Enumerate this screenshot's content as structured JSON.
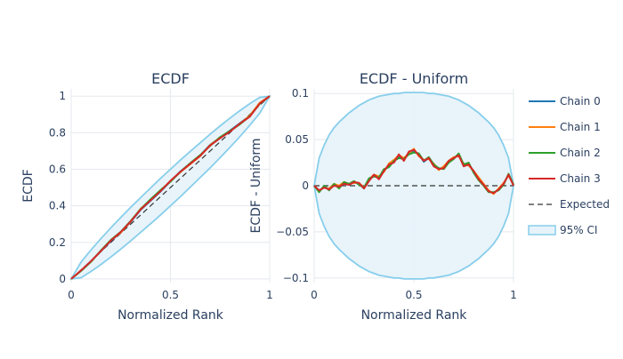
{
  "chart_data": [
    {
      "type": "line",
      "title": "ECDF",
      "xlabel": "Normalized Rank",
      "ylabel": "ECDF",
      "xlim": [
        0,
        1
      ],
      "ylim": [
        -0.02,
        1.04
      ],
      "x_ticks": [
        0,
        0.5,
        1
      ],
      "x_tick_labels": [
        "0",
        "0.5",
        "1"
      ],
      "y_ticks": [
        0,
        0.2,
        0.4,
        0.6,
        0.8,
        1
      ],
      "y_tick_labels": [
        "0",
        "0.2",
        "0.4",
        "0.6",
        "0.8",
        "1"
      ],
      "grid": true,
      "x": [
        0,
        0.05,
        0.1,
        0.15,
        0.2,
        0.25,
        0.3,
        0.35,
        0.4,
        0.45,
        0.5,
        0.55,
        0.6,
        0.65,
        0.7,
        0.75,
        0.8,
        0.85,
        0.9,
        0.95,
        1
      ],
      "series": [
        {
          "name": "Chain 0",
          "color": "#1f77b4",
          "values": [
            0,
            0.045,
            0.098,
            0.152,
            0.208,
            0.256,
            0.312,
            0.378,
            0.428,
            0.478,
            0.534,
            0.588,
            0.632,
            0.676,
            0.734,
            0.772,
            0.812,
            0.852,
            0.892,
            0.962,
            1
          ]
        },
        {
          "name": "Chain 1",
          "color": "#ff7f0e",
          "values": [
            0,
            0.046,
            0.096,
            0.154,
            0.212,
            0.254,
            0.314,
            0.384,
            0.432,
            0.482,
            0.536,
            0.584,
            0.628,
            0.672,
            0.732,
            0.774,
            0.808,
            0.848,
            0.894,
            0.964,
            1
          ]
        },
        {
          "name": "Chain 2",
          "color": "#2ca02c",
          "values": [
            0,
            0.044,
            0.094,
            0.156,
            0.214,
            0.258,
            0.318,
            0.382,
            0.436,
            0.486,
            0.532,
            0.586,
            0.634,
            0.678,
            0.728,
            0.776,
            0.81,
            0.846,
            0.89,
            0.958,
            1
          ]
        },
        {
          "name": "Chain 3",
          "color": "#d62728",
          "values": [
            0,
            0.047,
            0.097,
            0.153,
            0.21,
            0.257,
            0.315,
            0.38,
            0.43,
            0.48,
            0.537,
            0.586,
            0.63,
            0.674,
            0.73,
            0.77,
            0.806,
            0.85,
            0.888,
            0.96,
            1
          ]
        },
        {
          "name": "Expected",
          "color": "#333333",
          "dash": true,
          "values": [
            0,
            0.05,
            0.1,
            0.15,
            0.2,
            0.25,
            0.3,
            0.35,
            0.4,
            0.45,
            0.5,
            0.55,
            0.6,
            0.65,
            0.7,
            0.75,
            0.8,
            0.85,
            0.9,
            0.95,
            1
          ]
        }
      ],
      "ci": {
        "name": "95% CI",
        "color": "#87ceeb",
        "fill": "#e6f3fa",
        "halfwidth": [
          0,
          0.043,
          0.059,
          0.071,
          0.08,
          0.087,
          0.092,
          0.095,
          0.098,
          0.1,
          0.1,
          0.1,
          0.098,
          0.095,
          0.092,
          0.087,
          0.08,
          0.071,
          0.059,
          0.043,
          0
        ]
      }
    },
    {
      "type": "line",
      "title": "ECDF - Uniform",
      "xlabel": "Normalized Rank",
      "ylabel": "ECDF - Uniform",
      "xlim": [
        0,
        1
      ],
      "ylim": [
        -0.105,
        0.105
      ],
      "x_ticks": [
        0,
        0.5,
        1
      ],
      "x_tick_labels": [
        "0",
        "0.5",
        "1"
      ],
      "y_ticks": [
        -0.1,
        -0.05,
        0,
        0.05,
        0.1
      ],
      "y_tick_labels": [
        "−0.1",
        "−0.05",
        "0",
        "0.05",
        "0.1"
      ],
      "grid": true,
      "x": [
        0,
        0.025,
        0.05,
        0.075,
        0.1,
        0.125,
        0.15,
        0.175,
        0.2,
        0.225,
        0.25,
        0.275,
        0.3,
        0.325,
        0.35,
        0.375,
        0.4,
        0.425,
        0.45,
        0.475,
        0.5,
        0.525,
        0.55,
        0.575,
        0.6,
        0.625,
        0.65,
        0.675,
        0.7,
        0.725,
        0.75,
        0.775,
        0.8,
        0.825,
        0.85,
        0.875,
        0.9,
        0.925,
        0.95,
        0.975,
        1
      ],
      "series": [
        {
          "name": "Chain 0",
          "color": "#1f77b4",
          "values": [
            0,
            -0.006,
            -0.001,
            -0.004,
            0.001,
            -0.002,
            0.003,
            0.001,
            0.004,
            0.002,
            -0.003,
            0.006,
            0.011,
            0.008,
            0.016,
            0.022,
            0.026,
            0.032,
            0.028,
            0.036,
            0.038,
            0.034,
            0.026,
            0.03,
            0.022,
            0.018,
            0.02,
            0.026,
            0.03,
            0.034,
            0.022,
            0.024,
            0.015,
            0.008,
            0.001,
            -0.006,
            -0.008,
            -0.004,
            0.002,
            0.012,
            0.001
          ]
        },
        {
          "name": "Chain 1",
          "color": "#ff7f0e",
          "values": [
            0,
            -0.005,
            -0.002,
            -0.003,
            0.002,
            0,
            0.004,
            0.002,
            0.003,
            0.003,
            -0.002,
            0.007,
            0.012,
            0.01,
            0.015,
            0.024,
            0.028,
            0.033,
            0.03,
            0.035,
            0.04,
            0.032,
            0.028,
            0.029,
            0.024,
            0.017,
            0.021,
            0.027,
            0.031,
            0.032,
            0.024,
            0.022,
            0.016,
            0.009,
            0.002,
            -0.005,
            -0.009,
            -0.003,
            0.003,
            0.011,
            0.001
          ]
        },
        {
          "name": "Chain 2",
          "color": "#2ca02c",
          "values": [
            0,
            -0.007,
            0,
            -0.005,
            0.002,
            -0.003,
            0.004,
            0.002,
            0.005,
            0.001,
            -0.002,
            0.008,
            0.01,
            0.009,
            0.018,
            0.02,
            0.027,
            0.03,
            0.029,
            0.034,
            0.036,
            0.035,
            0.027,
            0.031,
            0.023,
            0.019,
            0.018,
            0.025,
            0.029,
            0.035,
            0.023,
            0.025,
            0.014,
            0.006,
            0,
            -0.007,
            -0.007,
            -0.005,
            0.001,
            0.013,
            0.001
          ]
        },
        {
          "name": "Chain 3",
          "color": "#d62728",
          "values": [
            0,
            -0.005,
            -0.002,
            -0.004,
            0,
            -0.001,
            0.002,
            0.001,
            0.004,
            0.003,
            -0.003,
            0.005,
            0.012,
            0.007,
            0.016,
            0.023,
            0.025,
            0.034,
            0.027,
            0.037,
            0.039,
            0.033,
            0.027,
            0.03,
            0.021,
            0.018,
            0.019,
            0.027,
            0.03,
            0.033,
            0.021,
            0.023,
            0.016,
            0.007,
            0.001,
            -0.006,
            -0.008,
            -0.004,
            0.002,
            0.012,
            0
          ]
        },
        {
          "name": "Expected",
          "color": "#333333",
          "dash": true,
          "values": [
            0,
            0,
            0,
            0,
            0,
            0,
            0,
            0,
            0,
            0,
            0,
            0,
            0,
            0,
            0,
            0,
            0,
            0,
            0,
            0,
            0,
            0,
            0,
            0,
            0,
            0,
            0,
            0,
            0,
            0,
            0,
            0,
            0,
            0,
            0,
            0,
            0,
            0,
            0,
            0,
            0
          ]
        }
      ],
      "ci": {
        "name": "95% CI",
        "color": "#87ceeb",
        "fill": "#e6f3fa",
        "halfwidth": [
          0,
          0.03,
          0.044,
          0.055,
          0.063,
          0.069,
          0.074,
          0.079,
          0.083,
          0.087,
          0.09,
          0.093,
          0.095,
          0.097,
          0.098,
          0.099,
          0.1,
          0.1,
          0.101,
          0.101,
          0.101,
          0.101,
          0.101,
          0.1,
          0.1,
          0.099,
          0.098,
          0.097,
          0.095,
          0.093,
          0.09,
          0.087,
          0.083,
          0.079,
          0.074,
          0.069,
          0.063,
          0.055,
          0.044,
          0.03,
          0
        ]
      }
    }
  ],
  "legend": {
    "placement": "right",
    "items": [
      {
        "label": "Chain 0",
        "color": "#1f77b4",
        "kind": "line"
      },
      {
        "label": "Chain 1",
        "color": "#ff7f0e",
        "kind": "line"
      },
      {
        "label": "Chain 2",
        "color": "#2ca02c",
        "kind": "line"
      },
      {
        "label": "Chain 3",
        "color": "#d62728",
        "kind": "line"
      },
      {
        "label": "Expected",
        "color": "#333333",
        "kind": "dash"
      },
      {
        "label": "95% CI",
        "color": "#87ceeb",
        "kind": "band"
      }
    ]
  }
}
